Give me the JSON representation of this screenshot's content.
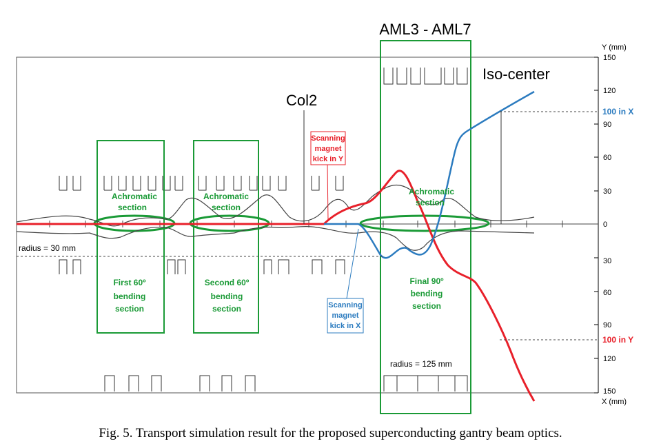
{
  "header": {
    "aml_label": "AML3 - AML7"
  },
  "labels": {
    "iso_center": "Iso-center",
    "col2": "Col2",
    "radius_30": "radius = 30 mm",
    "radius_125": "radius = 125 mm",
    "hundred_in_x": "100 in X",
    "hundred_in_y": "100 in Y"
  },
  "axis": {
    "y_title": "Y (mm)",
    "x_title": "X (mm)",
    "upper_ticks": [
      "150",
      "120",
      "90",
      "60",
      "30",
      "0"
    ],
    "lower_ticks": [
      "30",
      "60",
      "90",
      "120",
      "150"
    ]
  },
  "scanning_y": {
    "line1": "Scanning",
    "line2": "magnet",
    "line3": "kick in Y"
  },
  "scanning_x": {
    "line1": "Scanning",
    "line2": "magnet",
    "line3": "kick in X"
  },
  "sections": {
    "achromatic1": [
      "Achromatic",
      "section"
    ],
    "achromatic2": [
      "Achromatic",
      "section"
    ],
    "achromatic3": [
      "Achromatic",
      "section"
    ],
    "bend1": [
      "First 60º",
      "bending",
      "section"
    ],
    "bend2": [
      "Second 60º",
      "bending",
      "section"
    ],
    "bend3": [
      "Final 90º",
      "bending",
      "section"
    ]
  },
  "colors": {
    "green": "#1a9a36",
    "red": "#e8202a",
    "blue": "#2b7bbf"
  },
  "caption": "Fig. 5.  Transport simulation result for the proposed superconducting gantry beam optics."
}
